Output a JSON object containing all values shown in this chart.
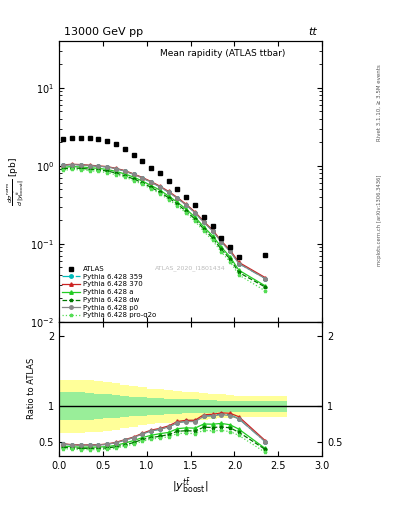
{
  "title_top": "13000 GeV pp",
  "title_top_right": "tt",
  "title_main": "Mean rapidity (ATLAS ttbar)",
  "watermark": "ATLAS_2020_I1801434",
  "right_label_top": "Rivet 3.1.10, ≥ 3.5M events",
  "right_label_bot": "mcplots.cern.ch [arXiv:1306.3436]",
  "ylabel_ratio": "Ratio to ATLAS",
  "xlabel": "$|y^{t\\bar{t}}_{\\rm boost}|$",
  "ylim_main": [
    0.01,
    40
  ],
  "ylim_ratio": [
    0.3,
    2.2
  ],
  "yticks_ratio": [
    0.5,
    1.0,
    2.0
  ],
  "xlim": [
    0,
    3.0
  ],
  "atlas_x": [
    0.05,
    0.15,
    0.25,
    0.35,
    0.45,
    0.55,
    0.65,
    0.75,
    0.85,
    0.95,
    1.05,
    1.15,
    1.25,
    1.35,
    1.45,
    1.55,
    1.65,
    1.75,
    1.85,
    1.95,
    2.05,
    2.35
  ],
  "atlas_y": [
    2.2,
    2.3,
    2.3,
    2.25,
    2.2,
    2.1,
    1.9,
    1.65,
    1.4,
    1.15,
    0.95,
    0.8,
    0.65,
    0.5,
    0.4,
    0.32,
    0.22,
    0.17,
    0.12,
    0.092,
    0.068,
    0.072
  ],
  "atlas_yerr_lo": [
    0.15,
    0.15,
    0.15,
    0.15,
    0.15,
    0.14,
    0.13,
    0.11,
    0.09,
    0.08,
    0.06,
    0.05,
    0.04,
    0.035,
    0.028,
    0.022,
    0.016,
    0.012,
    0.009,
    0.007,
    0.005,
    0.008
  ],
  "atlas_yerr_hi": [
    0.15,
    0.15,
    0.15,
    0.15,
    0.15,
    0.14,
    0.13,
    0.11,
    0.09,
    0.08,
    0.06,
    0.05,
    0.04,
    0.035,
    0.028,
    0.022,
    0.016,
    0.012,
    0.009,
    0.007,
    0.005,
    0.008
  ],
  "mc_x": [
    0.05,
    0.15,
    0.25,
    0.35,
    0.45,
    0.55,
    0.65,
    0.75,
    0.85,
    0.95,
    1.05,
    1.15,
    1.25,
    1.35,
    1.45,
    1.55,
    1.65,
    1.75,
    1.85,
    1.95,
    2.05,
    2.35
  ],
  "p359_y": [
    1.02,
    1.04,
    1.03,
    1.01,
    0.99,
    0.97,
    0.92,
    0.86,
    0.78,
    0.7,
    0.62,
    0.54,
    0.46,
    0.385,
    0.315,
    0.252,
    0.19,
    0.148,
    0.107,
    0.081,
    0.056,
    0.036
  ],
  "p370_y": [
    1.03,
    1.05,
    1.04,
    1.02,
    1.0,
    0.98,
    0.93,
    0.87,
    0.79,
    0.71,
    0.63,
    0.55,
    0.47,
    0.393,
    0.321,
    0.257,
    0.194,
    0.151,
    0.109,
    0.083,
    0.058,
    0.037
  ],
  "pa_y": [
    0.96,
    0.98,
    0.97,
    0.95,
    0.93,
    0.9,
    0.85,
    0.79,
    0.72,
    0.64,
    0.56,
    0.49,
    0.41,
    0.342,
    0.278,
    0.221,
    0.165,
    0.127,
    0.091,
    0.068,
    0.046,
    0.029
  ],
  "pdw_y": [
    0.92,
    0.94,
    0.93,
    0.91,
    0.89,
    0.86,
    0.81,
    0.75,
    0.68,
    0.61,
    0.53,
    0.46,
    0.39,
    0.323,
    0.262,
    0.208,
    0.155,
    0.119,
    0.085,
    0.064,
    0.043,
    0.028
  ],
  "pp0_y": [
    1.02,
    1.04,
    1.03,
    1.01,
    0.99,
    0.97,
    0.92,
    0.86,
    0.78,
    0.7,
    0.62,
    0.54,
    0.46,
    0.384,
    0.314,
    0.251,
    0.189,
    0.147,
    0.106,
    0.08,
    0.056,
    0.036
  ],
  "pq2o_y": [
    0.88,
    0.9,
    0.89,
    0.87,
    0.85,
    0.82,
    0.77,
    0.72,
    0.65,
    0.58,
    0.51,
    0.44,
    0.37,
    0.307,
    0.248,
    0.196,
    0.145,
    0.111,
    0.079,
    0.059,
    0.04,
    0.025
  ],
  "band_x_edges": [
    0.0,
    0.1,
    0.2,
    0.3,
    0.4,
    0.5,
    0.6,
    0.7,
    0.8,
    0.9,
    1.0,
    1.1,
    1.2,
    1.3,
    1.4,
    1.5,
    1.6,
    1.7,
    1.8,
    1.9,
    2.0,
    2.1,
    2.6
  ],
  "band_yellow_lo": [
    0.62,
    0.62,
    0.62,
    0.63,
    0.64,
    0.65,
    0.67,
    0.69,
    0.71,
    0.73,
    0.75,
    0.76,
    0.77,
    0.78,
    0.79,
    0.8,
    0.81,
    0.82,
    0.83,
    0.84,
    0.85,
    0.85
  ],
  "band_yellow_hi": [
    1.38,
    1.38,
    1.38,
    1.37,
    1.36,
    1.35,
    1.33,
    1.31,
    1.29,
    1.27,
    1.25,
    1.24,
    1.23,
    1.22,
    1.21,
    1.2,
    1.19,
    1.18,
    1.17,
    1.16,
    1.15,
    1.15
  ],
  "band_green_lo": [
    0.8,
    0.8,
    0.8,
    0.81,
    0.82,
    0.83,
    0.84,
    0.85,
    0.86,
    0.87,
    0.88,
    0.88,
    0.89,
    0.89,
    0.9,
    0.9,
    0.91,
    0.91,
    0.92,
    0.92,
    0.92,
    0.92
  ],
  "band_green_hi": [
    1.2,
    1.2,
    1.2,
    1.19,
    1.18,
    1.17,
    1.16,
    1.15,
    1.14,
    1.13,
    1.12,
    1.12,
    1.11,
    1.11,
    1.1,
    1.1,
    1.09,
    1.09,
    1.08,
    1.08,
    1.08,
    1.08
  ],
  "color_atlas": "#000000",
  "color_p359": "#00bbbb",
  "color_p370": "#cc2222",
  "color_pa": "#22cc22",
  "color_pdw": "#007700",
  "color_pp0": "#888888",
  "color_pq2o": "#55dd55",
  "legend_labels": [
    "ATLAS",
    "Pythia 6.428 359",
    "Pythia 6.428 370",
    "Pythia 6.428 a",
    "Pythia 6.428 dw",
    "Pythia 6.428 p0",
    "Pythia 6.428 pro-q2o"
  ]
}
